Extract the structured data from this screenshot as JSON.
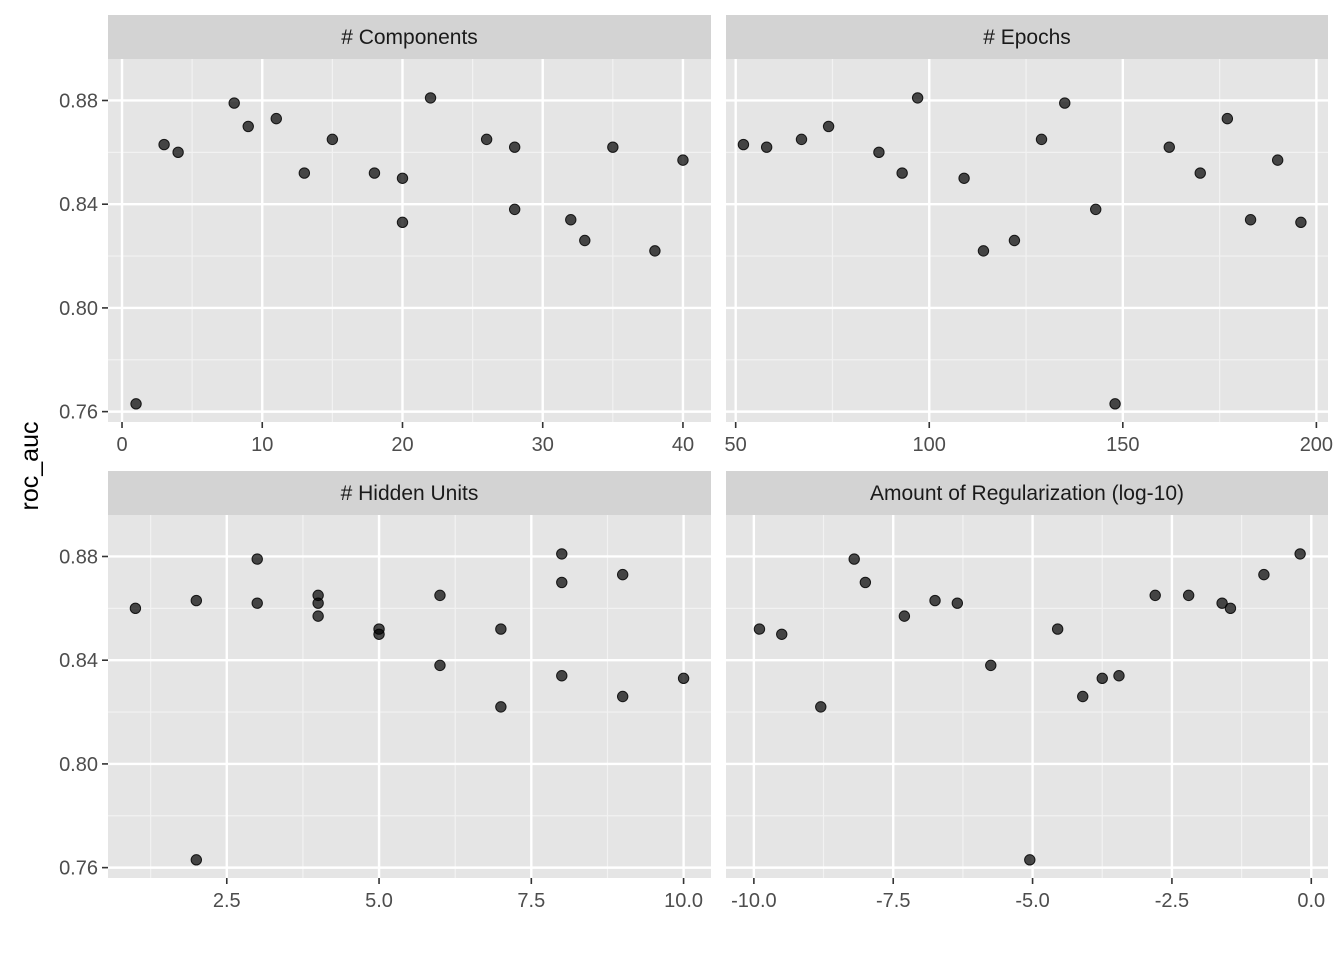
{
  "chart_data": {
    "type": "scatter",
    "ylabel": "roc_auc",
    "ylim": [
      0.756,
      0.896
    ],
    "y_ticks": [
      0.76,
      0.8,
      0.84,
      0.88
    ],
    "y_tick_labels": [
      "0.76",
      "0.80",
      "0.84",
      "0.88"
    ],
    "grid": true,
    "colors": {
      "panel_bg": "#e5e5e5",
      "strip_bg": "#d3d3d3",
      "grid_major": "#ffffff",
      "point": "#000000"
    },
    "panels": [
      {
        "title": "# Components",
        "xlim": [
          -1,
          42
        ],
        "x_ticks": [
          0,
          10,
          20,
          30,
          40
        ],
        "x_tick_labels": [
          "0",
          "10",
          "20",
          "30",
          "40"
        ],
        "points": [
          [
            1,
            0.763
          ],
          [
            3,
            0.863
          ],
          [
            4,
            0.86
          ],
          [
            8,
            0.879
          ],
          [
            9,
            0.87
          ],
          [
            11,
            0.873
          ],
          [
            13,
            0.852
          ],
          [
            15,
            0.865
          ],
          [
            18,
            0.852
          ],
          [
            20,
            0.85
          ],
          [
            20,
            0.833
          ],
          [
            22,
            0.881
          ],
          [
            26,
            0.865
          ],
          [
            28,
            0.862
          ],
          [
            28,
            0.838
          ],
          [
            32,
            0.834
          ],
          [
            33,
            0.826
          ],
          [
            35,
            0.862
          ],
          [
            38,
            0.822
          ],
          [
            40,
            0.857
          ]
        ]
      },
      {
        "title": "# Epochs",
        "xlim": [
          47.5,
          203
        ],
        "x_ticks": [
          50,
          100,
          150,
          200
        ],
        "x_tick_labels": [
          "50",
          "100",
          "150",
          "200"
        ],
        "points": [
          [
            52,
            0.863
          ],
          [
            58,
            0.862
          ],
          [
            67,
            0.865
          ],
          [
            74,
            0.87
          ],
          [
            87,
            0.86
          ],
          [
            93,
            0.852
          ],
          [
            97,
            0.881
          ],
          [
            109,
            0.85
          ],
          [
            114,
            0.822
          ],
          [
            122,
            0.826
          ],
          [
            129,
            0.865
          ],
          [
            135,
            0.879
          ],
          [
            143,
            0.838
          ],
          [
            148,
            0.763
          ],
          [
            162,
            0.862
          ],
          [
            170,
            0.852
          ],
          [
            177,
            0.873
          ],
          [
            183,
            0.834
          ],
          [
            190,
            0.857
          ],
          [
            196,
            0.833
          ]
        ]
      },
      {
        "title": "# Hidden Units",
        "xlim": [
          0.55,
          10.45
        ],
        "x_ticks": [
          2.5,
          5.0,
          7.5,
          10.0
        ],
        "x_tick_labels": [
          "2.5",
          "5.0",
          "7.5",
          "10.0"
        ],
        "points": [
          [
            1,
            0.86
          ],
          [
            2,
            0.863
          ],
          [
            2,
            0.763
          ],
          [
            3,
            0.879
          ],
          [
            3,
            0.862
          ],
          [
            4,
            0.865
          ],
          [
            4,
            0.862
          ],
          [
            4,
            0.857
          ],
          [
            5,
            0.852
          ],
          [
            5,
            0.85
          ],
          [
            6,
            0.865
          ],
          [
            6,
            0.838
          ],
          [
            7,
            0.852
          ],
          [
            7,
            0.822
          ],
          [
            8,
            0.881
          ],
          [
            8,
            0.87
          ],
          [
            8,
            0.834
          ],
          [
            9,
            0.873
          ],
          [
            9,
            0.826
          ],
          [
            10,
            0.833
          ]
        ]
      },
      {
        "title": "Amount of Regularization (log-10)",
        "xlim": [
          -10.5,
          0.3
        ],
        "x_ticks": [
          -10.0,
          -7.5,
          -5.0,
          -2.5,
          0.0
        ],
        "x_tick_labels": [
          "-10.0",
          "-7.5",
          "-5.0",
          "-2.5",
          "0.0"
        ],
        "points": [
          [
            -9.9,
            0.852
          ],
          [
            -9.5,
            0.85
          ],
          [
            -8.8,
            0.822
          ],
          [
            -8.2,
            0.879
          ],
          [
            -8.0,
            0.87
          ],
          [
            -7.3,
            0.857
          ],
          [
            -6.75,
            0.863
          ],
          [
            -6.35,
            0.862
          ],
          [
            -5.75,
            0.838
          ],
          [
            -5.05,
            0.763
          ],
          [
            -4.55,
            0.852
          ],
          [
            -4.1,
            0.826
          ],
          [
            -3.75,
            0.833
          ],
          [
            -3.45,
            0.834
          ],
          [
            -2.8,
            0.865
          ],
          [
            -2.2,
            0.865
          ],
          [
            -1.6,
            0.862
          ],
          [
            -1.45,
            0.86
          ],
          [
            -0.85,
            0.873
          ],
          [
            -0.2,
            0.881
          ]
        ]
      }
    ]
  }
}
